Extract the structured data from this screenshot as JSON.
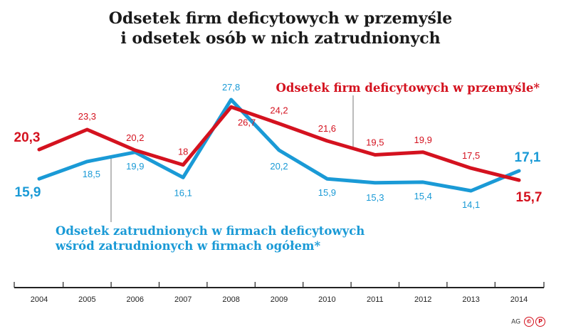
{
  "title_line1": "Odsetek firm deficytowych w przemyśle",
  "title_line2": "i odsetek osób w nich zatrudnionych",
  "colors": {
    "red": "#d4121f",
    "blue": "#1a9ad6"
  },
  "legend_red": "Odsetek firm deficytowych w przemyśle*",
  "legend_blue_line1": "Odsetek zatrudnionych w firmach deficytowych",
  "legend_blue_line2": "wśród zatrudnionych w firmach ogółem*",
  "credit_text": "AG",
  "credit_icons": [
    "copyright-icon",
    "p-icon"
  ],
  "credit_icon_glyphs": [
    "©",
    "P"
  ],
  "chart_data": {
    "type": "line",
    "categories": [
      "2004",
      "2005",
      "2006",
      "2007",
      "2008",
      "2009",
      "2010",
      "2011",
      "2012",
      "2013",
      "2014"
    ],
    "series": [
      {
        "name": "Odsetek firm deficytowych w przemyśle*",
        "color": "#d4121f",
        "values": [
          20.3,
          23.3,
          20.2,
          18,
          26.7,
          24.2,
          21.6,
          19.5,
          19.9,
          17.5,
          15.7
        ],
        "labels": [
          "20,3",
          "23,3",
          "20,2",
          "18",
          "26,7",
          "24,2",
          "21,6",
          "19,5",
          "19,9",
          "17,5",
          "15,7"
        ]
      },
      {
        "name": "Odsetek zatrudnionych w firmach deficytowych wśród zatrudnionych w firmach ogółem*",
        "color": "#1a9ad6",
        "values": [
          15.9,
          18.5,
          19.9,
          16.1,
          27.8,
          20.2,
          15.9,
          15.3,
          15.4,
          14.1,
          17.1
        ],
        "labels": [
          "15,9",
          "18,5",
          "19,9",
          "16,1",
          "27,8",
          "20,2",
          "15,9",
          "15,3",
          "15,4",
          "14,1",
          "17,1"
        ]
      }
    ],
    "grid": false,
    "legend": "inline annotations"
  }
}
